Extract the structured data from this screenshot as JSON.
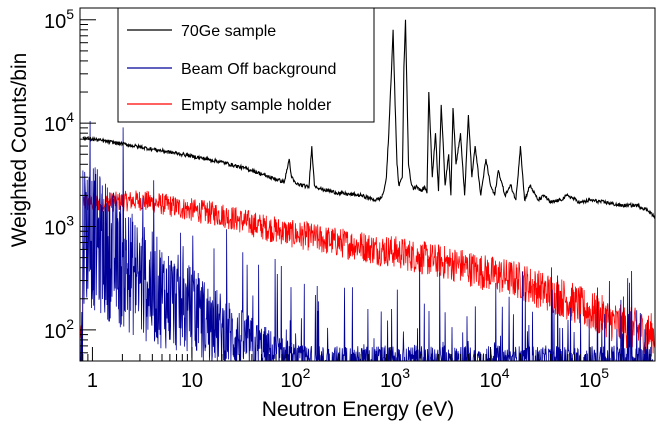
{
  "chart_data": {
    "type": "line",
    "xlabel": "Neutron Energy (eV)",
    "ylabel": "Weighted Counts/bin",
    "x_scale": "log",
    "y_scale": "log",
    "xlim": [
      0.75,
      450000
    ],
    "ylim": [
      50,
      130000
    ],
    "grid": false,
    "legend_position": "top-left",
    "x_ticks": [
      {
        "value": 1,
        "label": "1"
      },
      {
        "value": 10,
        "label": "10"
      },
      {
        "value": 100,
        "label": "10",
        "exp": "2"
      },
      {
        "value": 1000,
        "label": "10",
        "exp": "3"
      },
      {
        "value": 10000,
        "label": "10",
        "exp": "4"
      },
      {
        "value": 100000,
        "label": "10",
        "exp": "5"
      }
    ],
    "y_ticks": [
      {
        "value": 100,
        "label": "10",
        "exp": "2"
      },
      {
        "value": 1000,
        "label": "10",
        "exp": "3"
      },
      {
        "value": 10000,
        "label": "10",
        "exp": "4"
      },
      {
        "value": 100000,
        "label": "10",
        "exp": "5"
      }
    ],
    "series": [
      {
        "name": "70Ge sample",
        "color": "#000000",
        "x": [
          0.8,
          1,
          2,
          4,
          8,
          20,
          40,
          60,
          85,
          95,
          100,
          110,
          150,
          160,
          170,
          200,
          300,
          500,
          700,
          800,
          850,
          900,
          950,
          1000,
          1050,
          1100,
          1150,
          1200,
          1300,
          1350,
          1400,
          1450,
          1500,
          1600,
          1700,
          1800,
          2000,
          2200,
          2300,
          2400,
          2600,
          2800,
          3000,
          3200,
          3500,
          3800,
          4000,
          4200,
          4500,
          5000,
          5500,
          6000,
          6500,
          7000,
          8000,
          9000,
          10000,
          11000,
          12000,
          14000,
          16000,
          18000,
          20000,
          22000,
          25000,
          30000,
          35000,
          40000,
          50000,
          60000,
          80000,
          100000,
          150000,
          200000,
          300000,
          400000,
          450000
        ],
        "y": [
          7200,
          7000,
          6300,
          5600,
          5000,
          4200,
          3500,
          3000,
          2700,
          4500,
          3000,
          2600,
          2400,
          6000,
          2500,
          2300,
          2100,
          2000,
          1800,
          1900,
          2200,
          3000,
          8000,
          25000,
          80000,
          15000,
          4000,
          2500,
          3000,
          35000,
          100000,
          20000,
          4000,
          2600,
          2300,
          2500,
          2200,
          2400,
          2100,
          20000,
          3000,
          8000,
          2200,
          15000,
          2500,
          5000,
          2000,
          14000,
          4000,
          8000,
          2000,
          12000,
          3000,
          6000,
          2000,
          4500,
          2500,
          2000,
          3500,
          2000,
          2500,
          1800,
          6000,
          1800,
          2500,
          1800,
          2000,
          1700,
          1800,
          2000,
          1700,
          1800,
          1700,
          1600,
          1600,
          1400,
          1200
        ]
      },
      {
        "name": "Beam Off background",
        "color": "#000099",
        "x": [
          0.8,
          1,
          1.5,
          2,
          3,
          5,
          8,
          12,
          20,
          30,
          50,
          80,
          120,
          200,
          500,
          1000,
          5000,
          20000,
          100000,
          450000
        ],
        "y": [
          1000,
          800,
          550,
          420,
          300,
          220,
          170,
          130,
          100,
          80,
          65,
          55,
          50,
          50,
          50,
          50,
          50,
          50,
          50,
          50
        ]
      },
      {
        "name": "Empty sample holder",
        "color": "#ff0000",
        "x": [
          0.8,
          1,
          2,
          3,
          5,
          8,
          12,
          20,
          30,
          50,
          80,
          100,
          150,
          200,
          300,
          500,
          700,
          1000,
          2000,
          3000,
          5000,
          7000,
          10000,
          20000,
          30000,
          50000,
          70000,
          100000,
          150000,
          200000,
          300000,
          400000,
          450000
        ],
        "y": [
          1700,
          1700,
          1750,
          1800,
          1650,
          1500,
          1400,
          1300,
          1150,
          1000,
          900,
          850,
          800,
          750,
          700,
          650,
          600,
          580,
          500,
          460,
          420,
          380,
          350,
          300,
          250,
          210,
          180,
          150,
          130,
          110,
          100,
          90,
          90
        ]
      }
    ]
  }
}
